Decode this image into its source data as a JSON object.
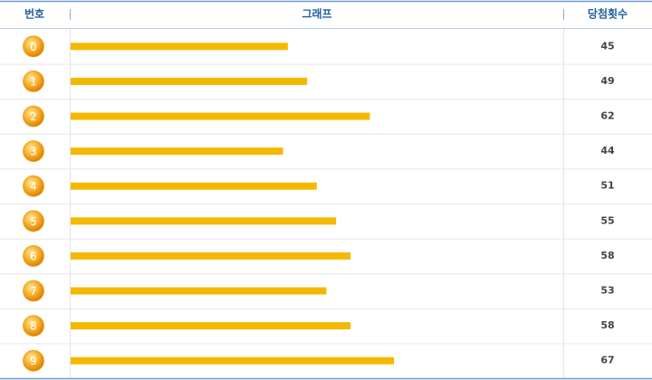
{
  "chart_data": {
    "type": "bar",
    "headers": [
      "번호",
      "그래프",
      "당첨횟수"
    ],
    "categories": [
      "0",
      "1",
      "2",
      "3",
      "4",
      "5",
      "6",
      "7",
      "8",
      "9"
    ],
    "values": [
      45,
      49,
      62,
      44,
      51,
      55,
      58,
      53,
      58,
      67
    ],
    "color": "#f5b800"
  }
}
